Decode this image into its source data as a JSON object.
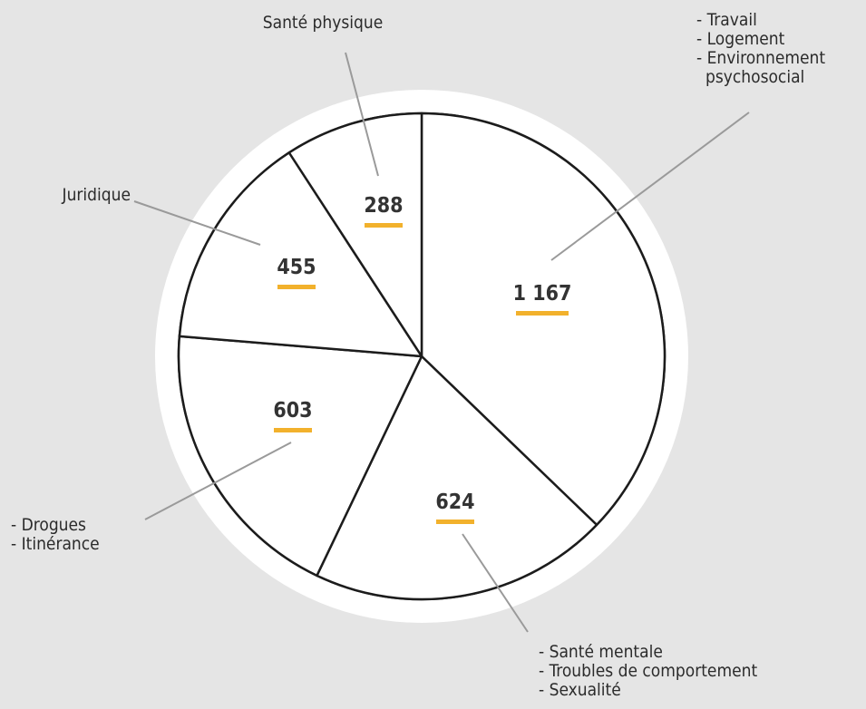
{
  "colors": {
    "background": "#e5e5e5",
    "disc": "#ffffff",
    "outline": "#1c1c1c",
    "leader": "#9a9a9a",
    "value_underline": "#f2b12c"
  },
  "chart_data": {
    "type": "pie",
    "start_angle_deg": 0,
    "direction": "clockwise",
    "slices": [
      {
        "value": 1167,
        "value_label": "1 167",
        "lines": [
          "- Travail",
          "- Logement",
          "- Environnement",
          "psychosocial"
        ]
      },
      {
        "value": 624,
        "value_label": "624",
        "lines": [
          "- Santé mentale",
          "- Troubles de comportement",
          "- Sexualité"
        ]
      },
      {
        "value": 603,
        "value_label": "603",
        "lines": [
          "- Drogues",
          "- Itinérance"
        ]
      },
      {
        "value": 455,
        "value_label": "455",
        "lines": [
          "Juridique"
        ]
      },
      {
        "value": 288,
        "value_label": "288",
        "lines": [
          "Santé physique"
        ]
      }
    ]
  }
}
